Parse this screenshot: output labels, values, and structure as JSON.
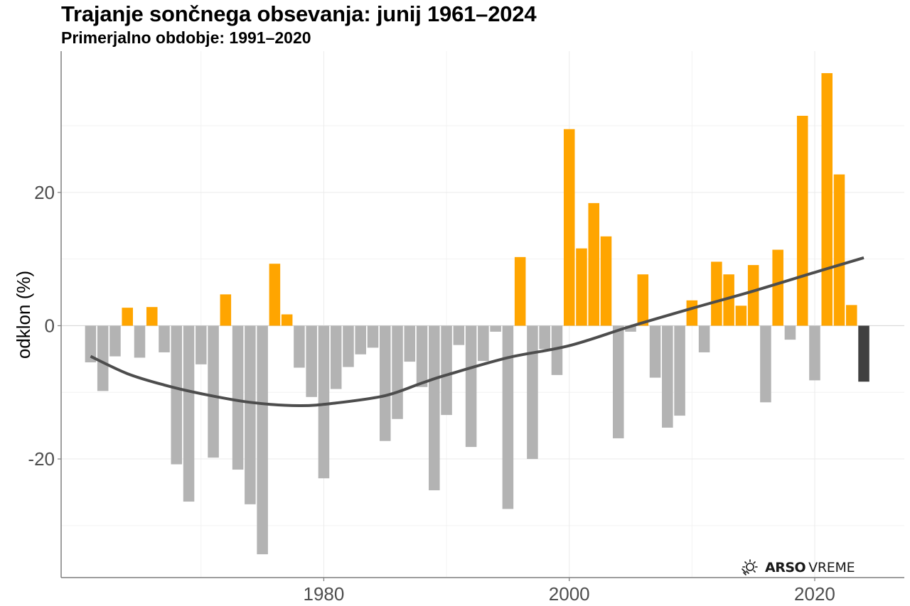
{
  "chart_data": {
    "type": "bar",
    "title": "Trajanje sončnega obsevanja: junij 1961–2024",
    "subtitle": "Primerjalno obdobje: 1991–2020",
    "xlabel": "",
    "ylabel": "odklon (%)",
    "x": [
      1961,
      1962,
      1963,
      1964,
      1965,
      1966,
      1967,
      1968,
      1969,
      1970,
      1971,
      1972,
      1973,
      1974,
      1975,
      1976,
      1977,
      1978,
      1979,
      1980,
      1981,
      1982,
      1983,
      1984,
      1985,
      1986,
      1987,
      1988,
      1989,
      1990,
      1991,
      1992,
      1993,
      1994,
      1995,
      1996,
      1997,
      1998,
      1999,
      2000,
      2001,
      2002,
      2003,
      2004,
      2005,
      2006,
      2007,
      2008,
      2009,
      2010,
      2011,
      2012,
      2013,
      2014,
      2015,
      2016,
      2017,
      2018,
      2019,
      2020,
      2021,
      2022,
      2023,
      2024
    ],
    "values": [
      -5.5,
      -9.8,
      -4.6,
      2.7,
      -4.8,
      2.8,
      -4.0,
      -20.8,
      -26.4,
      -5.8,
      -19.8,
      4.7,
      -21.6,
      -26.8,
      -34.3,
      9.3,
      1.7,
      -6.3,
      -10.7,
      -22.9,
      -9.5,
      -6.2,
      -4.3,
      -3.3,
      -17.3,
      -14.0,
      -5.4,
      -9.2,
      -24.7,
      -13.4,
      -2.9,
      -18.2,
      -5.3,
      -0.9,
      -27.5,
      10.3,
      -20.0,
      -3.5,
      -7.4,
      29.5,
      11.6,
      18.4,
      13.4,
      -16.9,
      -0.9,
      7.7,
      -7.8,
      -15.3,
      -13.5,
      3.8,
      -4.0,
      9.6,
      7.7,
      3.0,
      9.1,
      -11.5,
      11.4,
      -2.1,
      31.5,
      -8.2,
      37.9,
      22.7,
      3.1,
      -8.4
    ],
    "trend": {
      "name": "loess",
      "x": [
        1961,
        1964,
        1967,
        1970,
        1974,
        1978,
        1981,
        1985,
        1988,
        1990,
        1995,
        2000,
        2005,
        2010,
        2015,
        2020,
        2024
      ],
      "y": [
        -4.6,
        -7.2,
        -8.9,
        -10.2,
        -11.5,
        -12.0,
        -11.6,
        -10.5,
        -8.6,
        -7.4,
        -4.8,
        -3.0,
        -0.1,
        2.6,
        5.2,
        8.0,
        10.2
      ]
    },
    "colors": {
      "positive": "#FFA500",
      "negative": "#B3B3B3",
      "current_year": "#404040",
      "trend": "#4D4D4D"
    },
    "highlight_year": 2024,
    "xlim": [
      1958.6,
      2027.3
    ],
    "ylim": [
      -37.8,
      41.2
    ],
    "x_ticks": [
      1980,
      2000,
      2020
    ],
    "x_minor_ticks": [
      1970,
      1990,
      2010
    ],
    "y_ticks": [
      -20,
      0,
      20
    ],
    "y_minor_ticks": [
      -30,
      -10,
      10,
      30
    ],
    "grid": true,
    "legend": "none"
  },
  "branding": {
    "bold": "ARSO",
    "regular": "VREME",
    "icon": "sun-icon"
  }
}
